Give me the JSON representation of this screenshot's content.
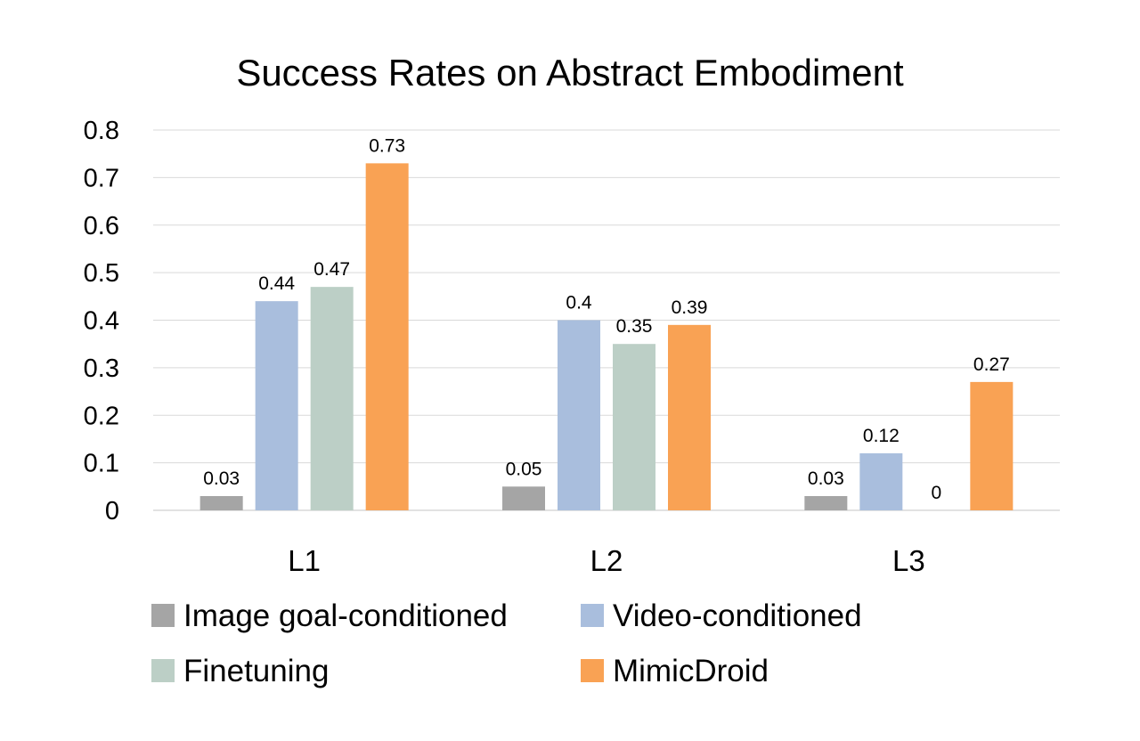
{
  "chart_data": {
    "type": "bar",
    "title": "Success Rates on Abstract Embodiment",
    "xlabel": "",
    "ylabel": "",
    "categories": [
      "L1",
      "L2",
      "L3"
    ],
    "ylim": [
      0,
      0.8
    ],
    "yticks": [
      "0",
      "0.1",
      "0.2",
      "0.3",
      "0.4",
      "0.5",
      "0.6",
      "0.7",
      "0.8"
    ],
    "grid": true,
    "legend_position": "bottom",
    "series": [
      {
        "name": "Image goal-conditioned",
        "color": "#a5a5a5",
        "values": [
          0.03,
          0.05,
          0.03
        ],
        "labels": [
          "0.03",
          "0.05",
          "0.03"
        ]
      },
      {
        "name": "Video-conditioned",
        "color": "#a9bedd",
        "values": [
          0.44,
          0.4,
          0.12
        ],
        "labels": [
          "0.44",
          "0.4",
          "0.12"
        ]
      },
      {
        "name": "Finetuning",
        "color": "#bccfc6",
        "values": [
          0.47,
          0.35,
          0
        ],
        "labels": [
          "0.47",
          "0.35",
          "0"
        ]
      },
      {
        "name": "MimicDroid",
        "color": "#f9a254",
        "values": [
          0.73,
          0.39,
          0.27
        ],
        "labels": [
          "0.73",
          "0.39",
          "0.27"
        ]
      }
    ]
  }
}
